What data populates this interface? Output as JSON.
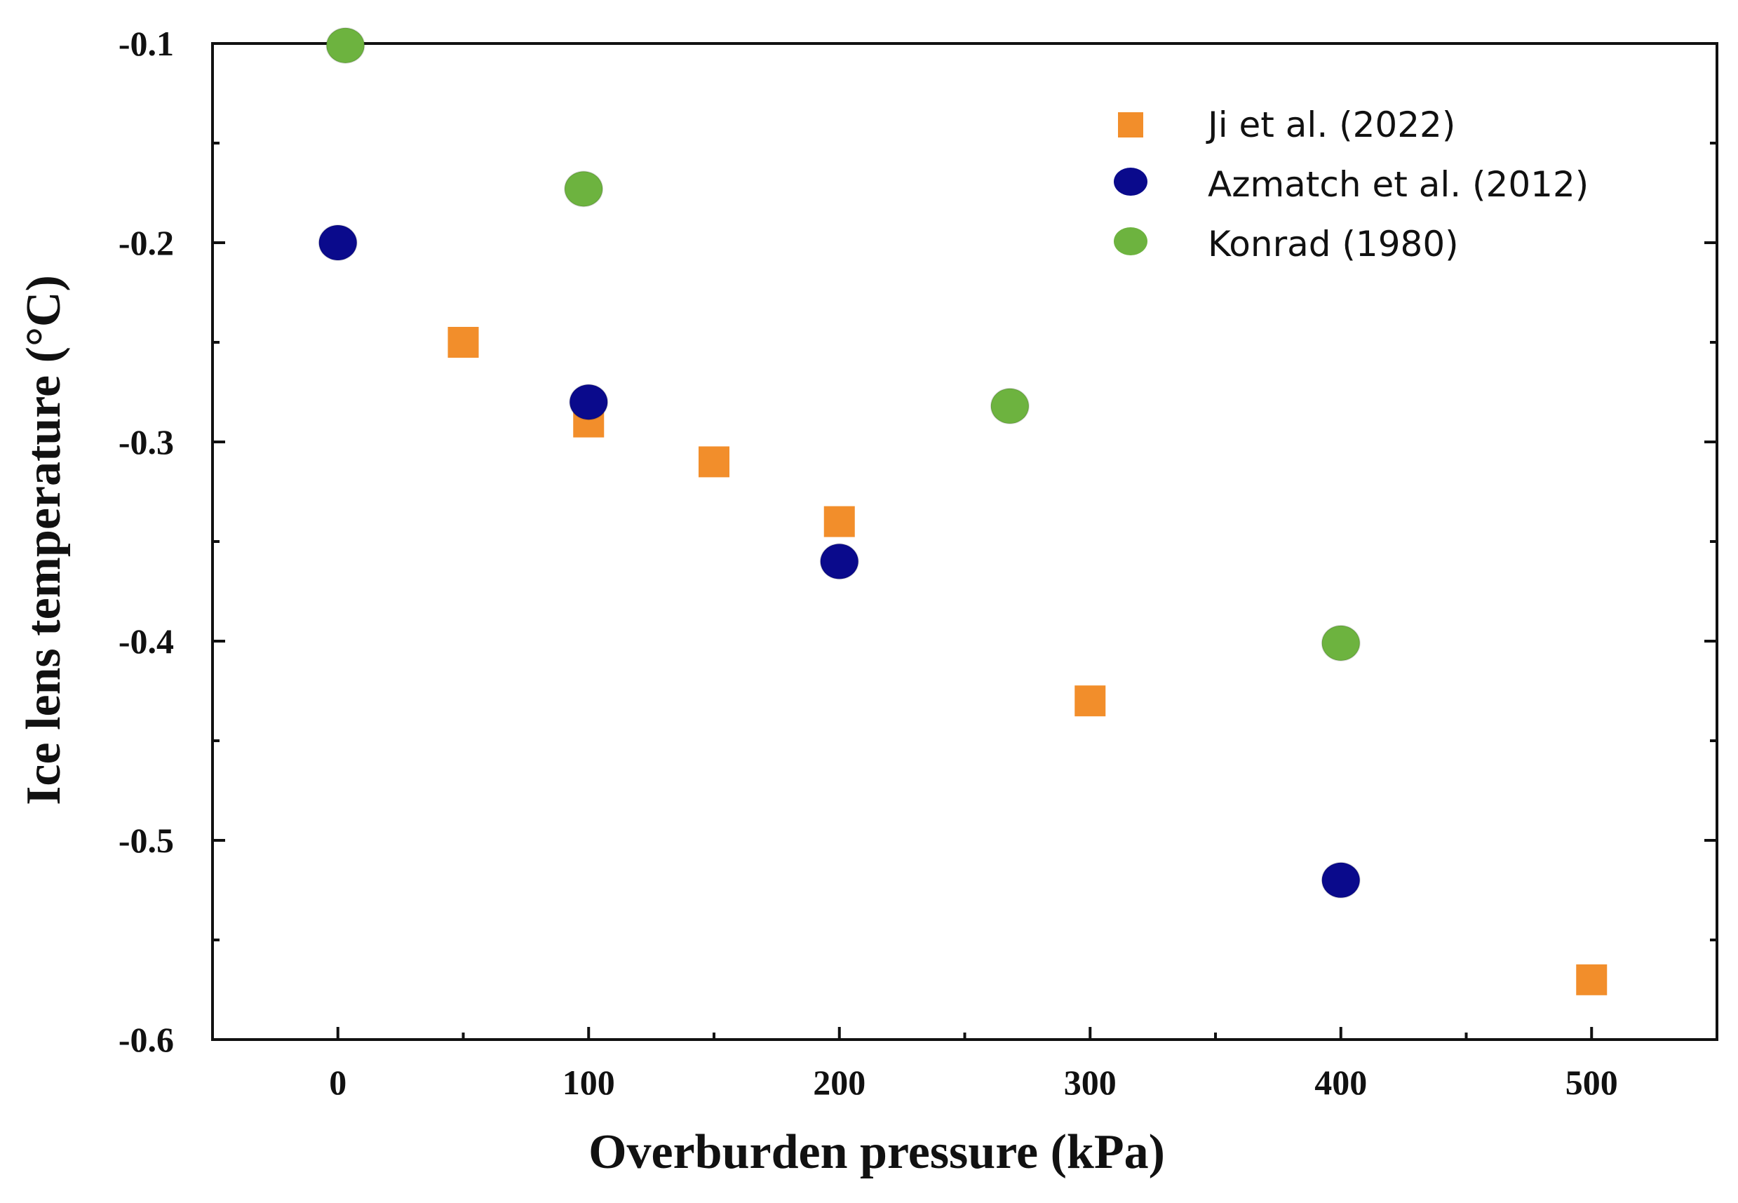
{
  "chart_data": {
    "type": "scatter",
    "title": "",
    "xlabel": "Overburden pressure (kPa)",
    "ylabel": "Ice lens temperature (°C)",
    "xlim": [
      -50,
      550
    ],
    "ylim": [
      -0.6,
      -0.1
    ],
    "xticks": [
      0,
      100,
      200,
      300,
      400,
      500
    ],
    "xtick_labels": [
      "0",
      "100",
      "200",
      "300",
      "400",
      "500"
    ],
    "yticks": [
      -0.1,
      -0.2,
      -0.3,
      -0.4,
      -0.5,
      -0.6
    ],
    "ytick_labels": [
      "-0.1",
      "-0.2",
      "-0.3",
      "-0.4",
      "-0.5",
      "-0.6"
    ],
    "grid": false,
    "legend_position": "top-right",
    "series": [
      {
        "name": "Ji et al. (2022)",
        "marker": "square",
        "color": "#f28e2b",
        "x": [
          50,
          100,
          150,
          200,
          300,
          500
        ],
        "y": [
          -0.25,
          -0.29,
          -0.31,
          -0.34,
          -0.43,
          -0.57
        ]
      },
      {
        "name": "Azmatch et al. (2012)",
        "marker": "circle",
        "color": "#0a0a8c",
        "x": [
          0,
          100,
          200,
          400
        ],
        "y": [
          -0.2,
          -0.28,
          -0.36,
          -0.52
        ]
      },
      {
        "name": "Konrad (1980)",
        "marker": "circle",
        "color": "#6db33f",
        "x": [
          3,
          98,
          268,
          400
        ],
        "y": [
          -0.101,
          -0.173,
          -0.282,
          -0.401
        ]
      }
    ]
  }
}
